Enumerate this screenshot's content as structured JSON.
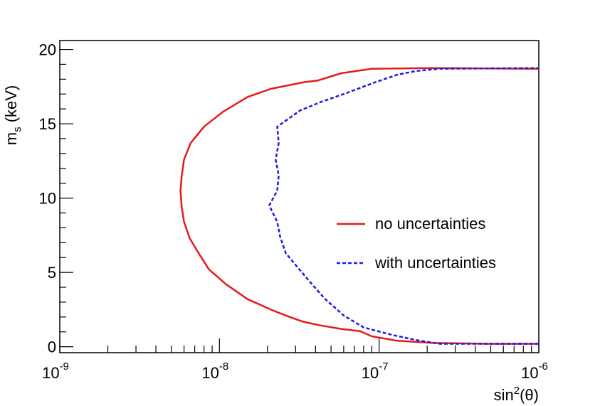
{
  "chart_data": {
    "type": "line",
    "x_scale": "log",
    "xlim": [
      1e-09,
      1e-06
    ],
    "ylim": [
      -0.4,
      20.6
    ],
    "xlabel_main": "sin",
    "xlabel_sup": "2",
    "xlabel_tail": "(θ)",
    "ylabel_main": "m",
    "ylabel_sub": "s",
    "ylabel_tail": " (keV)",
    "x_ticks": [
      {
        "value": 1e-09,
        "base": "10",
        "exp": "-9"
      },
      {
        "value": 1e-08,
        "base": "10",
        "exp": "-8"
      },
      {
        "value": 1e-07,
        "base": "10",
        "exp": "-7"
      },
      {
        "value": 1e-06,
        "base": "10",
        "exp": "-6"
      }
    ],
    "y_ticks": [
      {
        "value": 0,
        "label": "0"
      },
      {
        "value": 5,
        "label": "5"
      },
      {
        "value": 10,
        "label": "10"
      },
      {
        "value": 15,
        "label": "15"
      },
      {
        "value": 20,
        "label": "20"
      }
    ],
    "grid": false,
    "legend_position": "right-middle",
    "series": [
      {
        "name": "no uncertainties",
        "color": "#e8191c",
        "dash": "solid",
        "points": [
          [
            1e-06,
            0.2
          ],
          [
            5e-07,
            0.2
          ],
          [
            2.2e-07,
            0.25
          ],
          [
            1.3e-07,
            0.4
          ],
          [
            9e-08,
            0.7
          ],
          [
            7.6e-08,
            1.05
          ],
          [
            5.8e-08,
            1.2
          ],
          [
            4.2e-08,
            1.45
          ],
          [
            3.3e-08,
            1.7
          ],
          [
            2.6e-08,
            2.1
          ],
          [
            2.1e-08,
            2.5
          ],
          [
            1.5e-08,
            3.2
          ],
          [
            1.1e-08,
            4.2
          ],
          [
            8.6e-09,
            5.2
          ],
          [
            7.4e-09,
            6.3
          ],
          [
            6.5e-09,
            7.3
          ],
          [
            6e-09,
            8.4
          ],
          [
            5.8e-09,
            9.4
          ],
          [
            5.7e-09,
            10.5
          ],
          [
            5.8e-09,
            11.5
          ],
          [
            6e-09,
            12.6
          ],
          [
            6.6e-09,
            13.7
          ],
          [
            8e-09,
            14.8
          ],
          [
            1.05e-08,
            15.8
          ],
          [
            1.5e-08,
            16.8
          ],
          [
            2.1e-08,
            17.35
          ],
          [
            3.4e-08,
            17.8
          ],
          [
            4.1e-08,
            17.9
          ],
          [
            5.8e-08,
            18.4
          ],
          [
            9e-08,
            18.7
          ],
          [
            2e-07,
            18.75
          ],
          [
            1e-06,
            18.7
          ]
        ]
      },
      {
        "name": "with uncertainties",
        "color": "#1a1ae6",
        "dash": "dashed",
        "points": [
          [
            1e-06,
            0.2
          ],
          [
            5e-07,
            0.2
          ],
          [
            2.4e-07,
            0.2
          ],
          [
            1.7e-07,
            0.45
          ],
          [
            1.2e-07,
            0.8
          ],
          [
            8e-08,
            1.3
          ],
          [
            6e-08,
            2.1
          ],
          [
            4.6e-08,
            3.2
          ],
          [
            3.8e-08,
            4.2
          ],
          [
            3e-08,
            5.5
          ],
          [
            2.6e-08,
            6.3
          ],
          [
            2.4e-08,
            7.4
          ],
          [
            2.3e-08,
            8.4
          ],
          [
            2.05e-08,
            9.5
          ],
          [
            2.3e-08,
            10.5
          ],
          [
            2.35e-08,
            11.5
          ],
          [
            2.25e-08,
            12.6
          ],
          [
            2.35e-08,
            13.7
          ],
          [
            2.3e-08,
            14.8
          ],
          [
            3.2e-08,
            15.9
          ],
          [
            4.4e-08,
            16.5
          ],
          [
            6e-08,
            17.0
          ],
          [
            9.5e-08,
            17.8
          ],
          [
            1.3e-07,
            18.3
          ],
          [
            1.7e-07,
            18.55
          ],
          [
            2.4e-07,
            18.7
          ],
          [
            1e-06,
            18.75
          ]
        ]
      }
    ]
  }
}
